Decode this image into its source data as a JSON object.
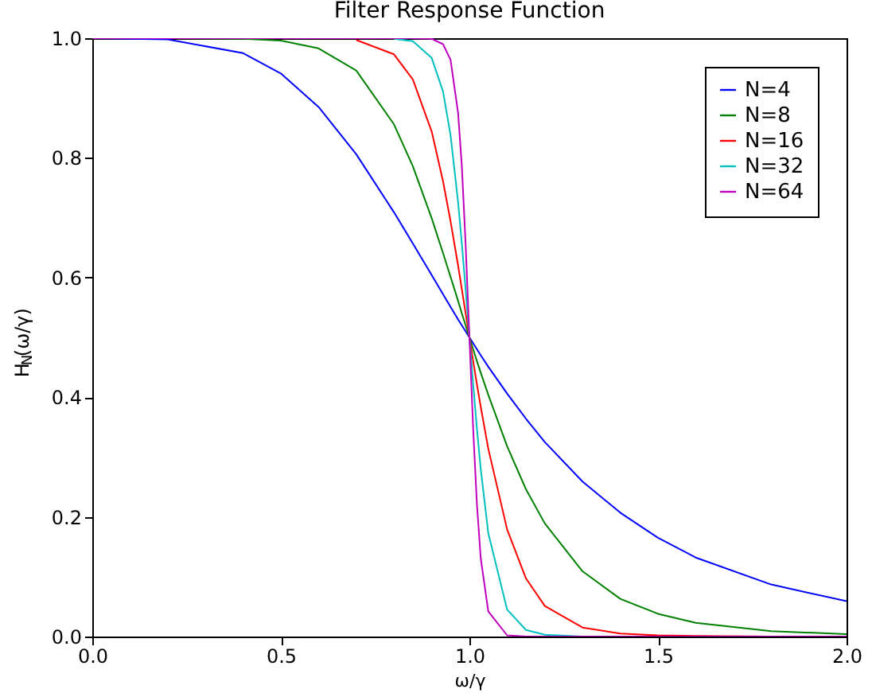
{
  "chart_data": {
    "type": "line",
    "title": "Filter Response Function",
    "xlabel": "ω/γ",
    "ylabel": "H$_{N}$(ω/γ)",
    "x": [
      0,
      0.2,
      0.4,
      0.5,
      0.6,
      0.7,
      0.8,
      0.85,
      0.9,
      0.93,
      0.95,
      0.97,
      0.98,
      0.99,
      1.0,
      1.01,
      1.02,
      1.03,
      1.05,
      1.1,
      1.15,
      1.2,
      1.3,
      1.4,
      1.5,
      1.6,
      1.8,
      2.0
    ],
    "series": [
      {
        "name": "N=4",
        "color": "#0000ff",
        "values": [
          1.0,
          0.998,
          0.975,
          0.941,
          0.885,
          0.806,
          0.709,
          0.657,
          0.604,
          0.572,
          0.551,
          0.53,
          0.52,
          0.51,
          0.5,
          0.49,
          0.48,
          0.47,
          0.451,
          0.406,
          0.364,
          0.325,
          0.259,
          0.207,
          0.165,
          0.132,
          0.087,
          0.059
        ]
      },
      {
        "name": "N=8",
        "color": "#008000",
        "values": [
          1.0,
          1.0,
          0.999,
          0.996,
          0.983,
          0.946,
          0.856,
          0.786,
          0.699,
          0.641,
          0.601,
          0.561,
          0.54,
          0.52,
          0.5,
          0.48,
          0.46,
          0.441,
          0.404,
          0.318,
          0.246,
          0.189,
          0.109,
          0.063,
          0.038,
          0.023,
          0.009,
          0.004
        ]
      },
      {
        "name": "N=16",
        "color": "#ff0000",
        "values": [
          null,
          null,
          null,
          null,
          null,
          0.997,
          0.973,
          0.931,
          0.844,
          0.761,
          0.694,
          0.62,
          0.58,
          0.54,
          0.5,
          0.46,
          0.421,
          0.384,
          0.314,
          0.179,
          0.097,
          0.051,
          0.015,
          0.005,
          0.002,
          0.001,
          0.0,
          0.0
        ]
      },
      {
        "name": "N=32",
        "color": "#00bfbf",
        "values": [
          null,
          null,
          null,
          null,
          null,
          null,
          0.999,
          0.995,
          0.967,
          0.911,
          0.838,
          0.726,
          0.656,
          0.58,
          0.5,
          0.421,
          0.347,
          0.28,
          0.173,
          0.045,
          0.011,
          0.003,
          0.0,
          0.0,
          null,
          null,
          null,
          null
        ]
      },
      {
        "name": "N=64",
        "color": "#bf00bf",
        "values": [
          1.0,
          1.0,
          1.0,
          1.0,
          1.0,
          1.0,
          1.0,
          1.0,
          0.999,
          0.99,
          0.964,
          0.875,
          0.785,
          0.655,
          0.5,
          0.346,
          0.22,
          0.131,
          0.042,
          0.002,
          0.0,
          0.0,
          0.0,
          0.0,
          0.0,
          0.0,
          0.0,
          0.0
        ]
      }
    ],
    "xlim": [
      0,
      2
    ],
    "xticks": [
      {
        "value": 0,
        "label": "0.0"
      },
      {
        "value": 0.5,
        "label": "0.5"
      },
      {
        "value": 1,
        "label": "1.0"
      },
      {
        "value": 1.5,
        "label": "1.5"
      },
      {
        "value": 2,
        "label": "2.0"
      }
    ],
    "ylim": [
      0,
      1
    ],
    "yticks": [
      {
        "value": 0,
        "label": "0.0"
      },
      {
        "value": 0.2,
        "label": "0.2"
      },
      {
        "value": 0.4,
        "label": "0.4"
      },
      {
        "value": 0.6,
        "label": "0.6"
      },
      {
        "value": 0.8,
        "label": "0.8"
      },
      {
        "value": 1,
        "label": "1.0"
      }
    ],
    "grid": false,
    "legend": "top right",
    "marker": "none",
    "line_style": "solid"
  }
}
